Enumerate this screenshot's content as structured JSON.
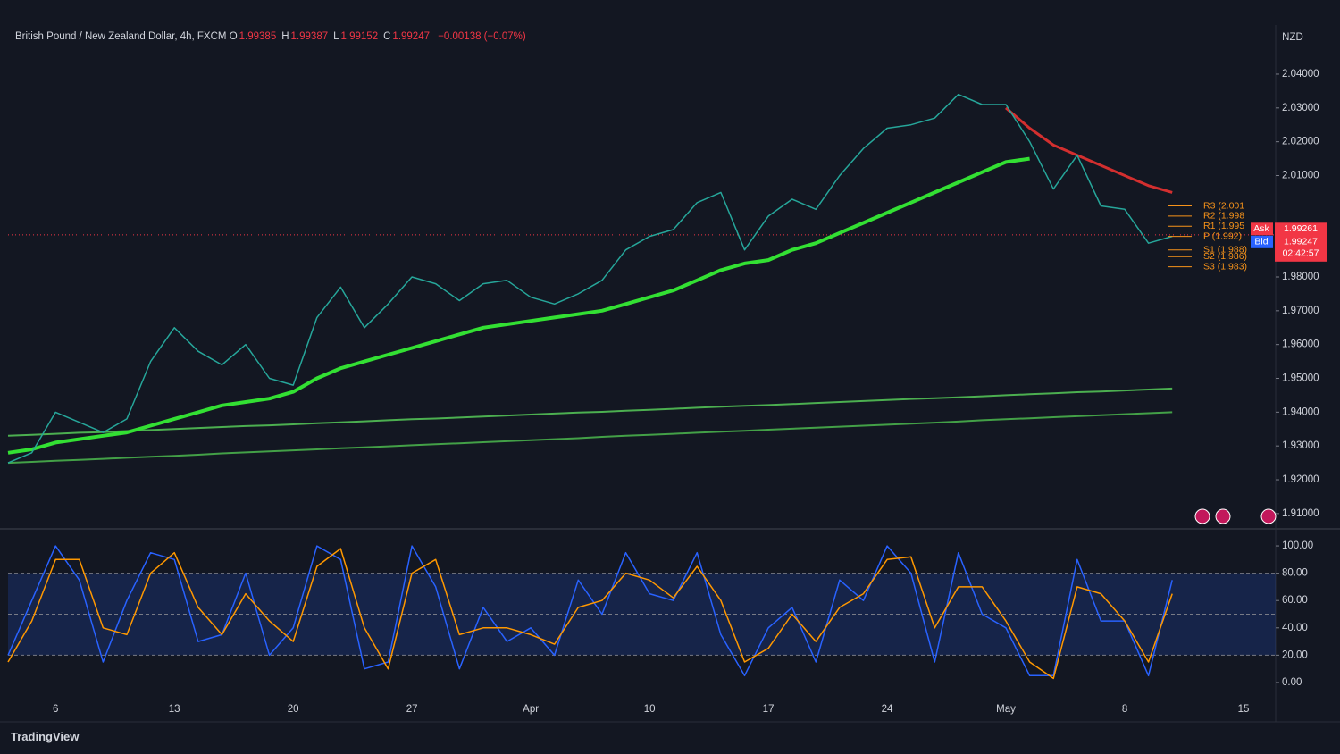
{
  "currency": "NZD",
  "header": {
    "symbol": "British Pound / New Zealand Dollar, 4h, FXCM",
    "ohlc": [
      {
        "key": "O",
        "value": "1.99385"
      },
      {
        "key": "H",
        "value": "1.99387"
      },
      {
        "key": "L",
        "value": "1.99152"
      },
      {
        "key": "C",
        "value": "1.99247"
      }
    ],
    "change": "−0.00138 (−0.07%)"
  },
  "footer": "TradingView",
  "chart_data": [
    {
      "type": "line",
      "categories": [
        null,
        null,
        "6",
        null,
        null,
        null,
        null,
        "13",
        null,
        null,
        null,
        null,
        "20",
        null,
        null,
        null,
        null,
        "27",
        null,
        null,
        null,
        null,
        "Apr",
        null,
        null,
        null,
        null,
        "10",
        null,
        null,
        null,
        null,
        "17",
        null,
        null,
        null,
        null,
        "24",
        null,
        null,
        null,
        null,
        "May",
        null,
        null,
        null,
        null,
        "8",
        null,
        null,
        null,
        null,
        "15"
      ],
      "ylim": [
        1.906,
        2.054
      ],
      "yticks": [
        {
          "value": 2.04,
          "label": "2.04000"
        },
        {
          "value": 2.03,
          "label": "2.03000"
        },
        {
          "value": 2.02,
          "label": "2.02000"
        },
        {
          "value": 2.01,
          "label": "2.01000"
        },
        {
          "value": 1.98,
          "label": "1.98000"
        },
        {
          "value": 1.97,
          "label": "1.97000"
        },
        {
          "value": 1.96,
          "label": "1.96000"
        },
        {
          "value": 1.95,
          "label": "1.95000"
        },
        {
          "value": 1.94,
          "label": "1.94000"
        },
        {
          "value": 1.93,
          "label": "1.93000"
        },
        {
          "value": 1.92,
          "label": "1.92000"
        },
        {
          "value": 1.91,
          "label": "1.91000"
        }
      ],
      "grid": false,
      "series": [
        {
          "color": "#4caf50",
          "width": 2,
          "values": [
            1.933,
            1.9333,
            1.9336,
            1.9339,
            1.9341,
            1.9344,
            1.9347,
            1.935,
            1.9353,
            1.9356,
            1.9359,
            1.9361,
            1.9364,
            1.9367,
            1.937,
            1.9373,
            1.9376,
            1.9379,
            1.9381,
            1.9384,
            1.9387,
            1.939,
            1.9393,
            1.9396,
            1.9399,
            1.9401,
            1.9404,
            1.9407,
            1.941,
            1.9413,
            1.9416,
            1.9419,
            1.9421,
            1.9424,
            1.9427,
            1.943,
            1.9433,
            1.9436,
            1.9439,
            1.9441,
            1.9444,
            1.9447,
            1.945,
            1.9453,
            1.9456,
            1.9459,
            1.9461,
            1.9464,
            1.9467,
            1.947,
            null,
            null,
            null
          ]
        },
        {
          "color": "#43a047",
          "width": 2,
          "values": [
            1.925,
            1.9253,
            1.9256,
            1.9259,
            1.9262,
            1.9265,
            1.9268,
            1.9271,
            1.9274,
            1.9278,
            1.9281,
            1.9284,
            1.9287,
            1.929,
            1.9293,
            1.9296,
            1.9299,
            1.9302,
            1.9305,
            1.9308,
            1.9311,
            1.9314,
            1.9317,
            1.932,
            1.9323,
            1.9327,
            1.933,
            1.9333,
            1.9336,
            1.9339,
            1.9342,
            1.9345,
            1.9348,
            1.9351,
            1.9354,
            1.9357,
            1.936,
            1.9363,
            1.9366,
            1.9369,
            1.9372,
            1.9376,
            1.9379,
            1.9382,
            1.9385,
            1.9388,
            1.9391,
            1.9394,
            1.9397,
            1.94,
            null,
            null,
            null
          ]
        },
        {
          "color": "#33e033",
          "width": 4,
          "values": [
            1.928,
            1.929,
            1.931,
            1.932,
            1.933,
            1.934,
            1.936,
            1.938,
            1.94,
            1.942,
            1.943,
            1.944,
            1.946,
            1.95,
            1.953,
            1.955,
            1.957,
            1.959,
            1.961,
            1.963,
            1.965,
            1.966,
            1.967,
            1.968,
            1.969,
            1.97,
            1.972,
            1.974,
            1.976,
            1.979,
            1.982,
            1.984,
            1.985,
            1.988,
            1.99,
            1.993,
            1.996,
            1.999,
            2.002,
            2.005,
            2.008,
            2.011,
            2.014,
            2.015,
            null,
            null,
            null,
            null,
            null,
            null,
            null,
            null,
            null
          ]
        },
        {
          "color": "#d32f2f",
          "width": 3,
          "values": [
            null,
            null,
            null,
            null,
            null,
            null,
            null,
            null,
            null,
            null,
            null,
            null,
            null,
            null,
            null,
            null,
            null,
            null,
            null,
            null,
            null,
            null,
            null,
            null,
            null,
            null,
            null,
            null,
            null,
            null,
            null,
            null,
            null,
            null,
            null,
            null,
            null,
            null,
            null,
            null,
            null,
            null,
            2.03,
            2.024,
            2.019,
            2.016,
            2.013,
            2.01,
            2.007,
            2.005,
            null,
            null,
            null
          ]
        },
        {
          "color": "#26a69a",
          "width": 1.5,
          "values": [
            1.925,
            1.928,
            1.94,
            1.937,
            1.934,
            1.938,
            1.955,
            1.965,
            1.958,
            1.954,
            1.96,
            1.95,
            1.948,
            1.968,
            1.977,
            1.965,
            1.972,
            1.98,
            1.978,
            1.973,
            1.978,
            1.979,
            1.974,
            1.972,
            1.975,
            1.979,
            1.988,
            1.992,
            1.994,
            2.002,
            2.005,
            1.988,
            1.998,
            2.003,
            2.0,
            2.01,
            2.018,
            2.024,
            2.025,
            2.027,
            2.034,
            2.031,
            2.031,
            2.02,
            2.006,
            2.016,
            2.001,
            2.0,
            1.99,
            1.992,
            null,
            null,
            null
          ]
        }
      ],
      "pivots": [
        {
          "label": "R3 (2.001",
          "value": 2.001
        },
        {
          "label": "R2 (1.998",
          "value": 1.998
        },
        {
          "label": "R1 (1.995",
          "value": 1.995
        },
        {
          "label": "P (1.992)",
          "value": 1.992
        },
        {
          "label": "S1 (1.988)",
          "value": 1.988
        },
        {
          "label": "S2 (1.986)",
          "value": 1.986
        },
        {
          "label": "S3 (1.983)",
          "value": 1.983
        }
      ],
      "pivot_color": "#f7931a",
      "quotes": [
        {
          "name": "Ask",
          "value": 1.99261,
          "label": "1.99261",
          "color": "#f23645"
        },
        {
          "name": "Bid",
          "value": 1.99247,
          "label": "1.99247",
          "color": "#2962ff"
        }
      ],
      "last_price": {
        "value": 1.99247,
        "label": "1.99247",
        "countdown": "02:42:57",
        "color": "#f23645"
      }
    },
    {
      "type": "line",
      "ylim": [
        -10.5,
        110.5
      ],
      "yticks": [
        {
          "value": 100,
          "label": "100.00"
        },
        {
          "value": 80,
          "label": "80.00"
        },
        {
          "value": 60,
          "label": "60.00"
        },
        {
          "value": 40,
          "label": "40.00"
        },
        {
          "value": 20,
          "label": "20.00"
        },
        {
          "value": 0,
          "label": "0.00"
        }
      ],
      "band": [
        20,
        80
      ],
      "hlines": [
        80,
        50,
        20
      ],
      "series": [
        {
          "color": "#2962ff",
          "width": 1.5,
          "values": [
            20,
            60,
            100,
            75,
            15,
            60,
            95,
            90,
            30,
            35,
            80,
            20,
            40,
            100,
            90,
            10,
            15,
            100,
            70,
            10,
            55,
            30,
            40,
            20,
            75,
            50,
            95,
            65,
            60,
            95,
            35,
            5,
            40,
            55,
            15,
            75,
            60,
            100,
            80,
            15,
            95,
            50,
            40,
            5,
            5,
            90,
            45,
            45,
            5,
            75,
            null,
            null,
            null
          ]
        },
        {
          "color": "#ff9800",
          "width": 1.5,
          "values": [
            15,
            45,
            90,
            90,
            40,
            35,
            80,
            95,
            55,
            35,
            65,
            45,
            30,
            85,
            98,
            40,
            10,
            80,
            90,
            35,
            40,
            40,
            35,
            28,
            55,
            60,
            80,
            75,
            62,
            85,
            60,
            15,
            25,
            50,
            30,
            55,
            65,
            90,
            92,
            40,
            70,
            70,
            45,
            15,
            3,
            70,
            65,
            45,
            15,
            65,
            null,
            null,
            null
          ]
        }
      ]
    }
  ]
}
